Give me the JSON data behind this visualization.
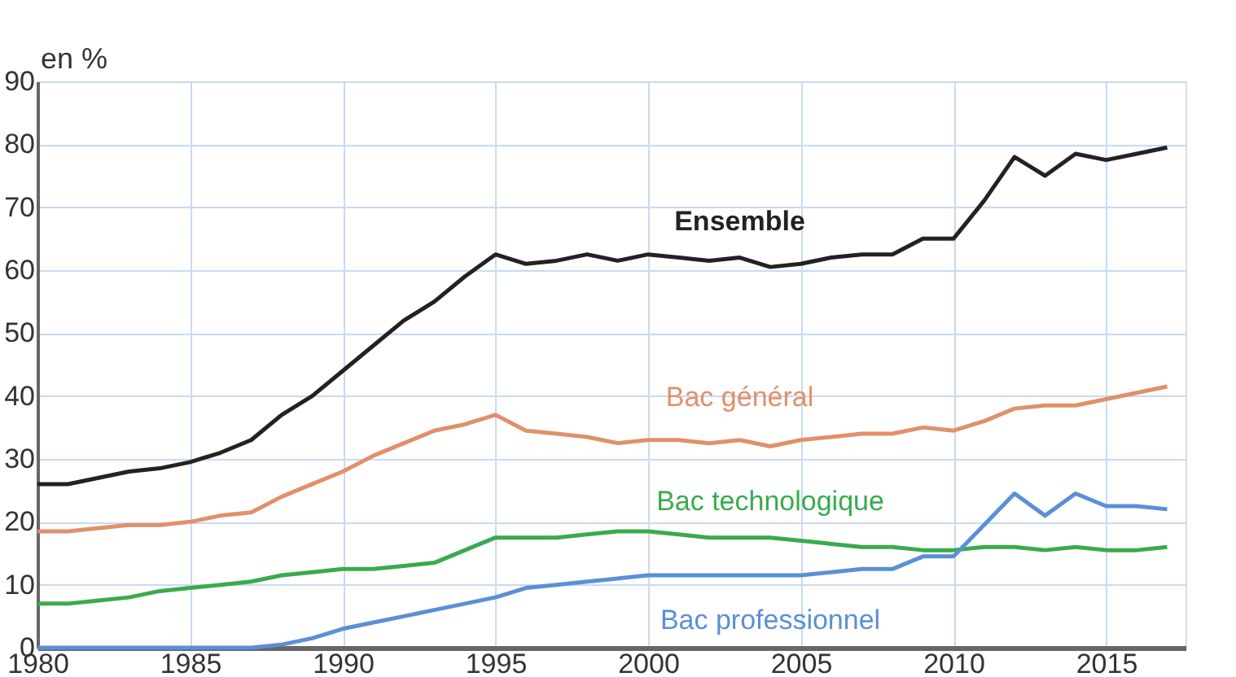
{
  "chart_data": {
    "type": "line",
    "ylabel": "en %",
    "x": [
      1980,
      1981,
      1982,
      1983,
      1984,
      1985,
      1986,
      1987,
      1988,
      1989,
      1990,
      1991,
      1992,
      1993,
      1994,
      1995,
      1996,
      1997,
      1998,
      1999,
      2000,
      2001,
      2002,
      2003,
      2004,
      2005,
      2006,
      2007,
      2008,
      2009,
      2010,
      2011,
      2012,
      2013,
      2014,
      2015,
      2016,
      2017
    ],
    "series": [
      {
        "name": "Ensemble",
        "color": "#222222",
        "values": [
          26,
          26,
          27,
          28,
          28.5,
          29.5,
          31,
          33,
          37,
          40,
          44,
          48,
          52,
          55,
          59,
          62.5,
          61,
          61.5,
          62.5,
          61.5,
          62.5,
          62,
          61.5,
          62,
          60.5,
          61,
          62,
          62.5,
          62.5,
          65,
          65,
          71,
          78,
          75,
          78.5,
          77.5,
          78.5,
          79.5
        ]
      },
      {
        "name": "Bac général",
        "color": "#e0906b",
        "values": [
          18.5,
          18.5,
          19,
          19.5,
          19.5,
          20,
          21,
          21.5,
          24,
          26,
          28,
          30.5,
          32.5,
          34.5,
          35.5,
          37,
          34.5,
          34,
          33.5,
          32.5,
          33,
          33,
          32.5,
          33,
          32,
          33,
          33.5,
          34,
          34,
          35,
          34.5,
          36,
          38,
          38.5,
          38.5,
          39.5,
          40.5,
          41.5
        ]
      },
      {
        "name": "Bac technologique",
        "color": "#3aaa4e",
        "values": [
          7,
          7,
          7.5,
          8,
          9,
          9.5,
          10,
          10.5,
          11.5,
          12,
          12.5,
          12.5,
          13,
          13.5,
          15.5,
          17.5,
          17.5,
          17.5,
          18,
          18.5,
          18.5,
          18,
          17.5,
          17.5,
          17.5,
          17,
          16.5,
          16,
          16,
          15.5,
          15.5,
          16,
          16,
          15.5,
          16,
          15.5,
          15.5,
          16
        ]
      },
      {
        "name": "Bac professionnel",
        "color": "#5b8fd6",
        "values": [
          0,
          0,
          0,
          0,
          0,
          0,
          0,
          0,
          0.5,
          1.5,
          3,
          4,
          5,
          6,
          7,
          8,
          9.5,
          10,
          10.5,
          11,
          11.5,
          11.5,
          11.5,
          11.5,
          11.5,
          11.5,
          12,
          12.5,
          12.5,
          14.5,
          14.5,
          19.5,
          24.5,
          21,
          24.5,
          22.5,
          22.5,
          22
        ]
      }
    ],
    "xlim": [
      1980,
      2017.6
    ],
    "xticks": [
      1980,
      1985,
      1990,
      1995,
      2000,
      2005,
      2010,
      2015
    ],
    "ylim": [
      0,
      90
    ],
    "yticks": [
      0,
      10,
      20,
      30,
      40,
      50,
      60,
      70,
      80,
      90
    ],
    "grid": true,
    "legend": false,
    "marker": "none",
    "line_style": "solid"
  }
}
